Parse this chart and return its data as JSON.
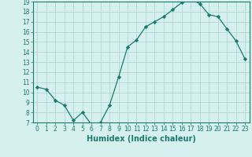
{
  "xlabel": "Humidex (Indice chaleur)",
  "x": [
    0,
    1,
    2,
    3,
    4,
    5,
    6,
    7,
    8,
    9,
    10,
    11,
    12,
    13,
    14,
    15,
    16,
    17,
    18,
    19,
    20,
    21,
    22,
    23
  ],
  "y": [
    10.5,
    10.3,
    9.2,
    8.7,
    7.2,
    8.0,
    6.8,
    7.0,
    8.7,
    11.5,
    14.5,
    15.2,
    16.5,
    17.0,
    17.5,
    18.2,
    18.9,
    19.2,
    18.8,
    17.7,
    17.5,
    16.3,
    15.1,
    13.3
  ],
  "line_color": "#1a7a6e",
  "marker": "D",
  "marker_size": 2.2,
  "bg_color": "#d6f0ef",
  "grid_color": "#b0d8d5",
  "ylim": [
    7,
    19
  ],
  "xlim": [
    -0.5,
    23.5
  ],
  "yticks": [
    7,
    8,
    9,
    10,
    11,
    12,
    13,
    14,
    15,
    16,
    17,
    18,
    19
  ],
  "xticks": [
    0,
    1,
    2,
    3,
    4,
    5,
    6,
    7,
    8,
    9,
    10,
    11,
    12,
    13,
    14,
    15,
    16,
    17,
    18,
    19,
    20,
    21,
    22,
    23
  ],
  "tick_fontsize": 5.5,
  "label_fontsize": 7.0,
  "axis_color": "#1a7a6e",
  "spine_color": "#1a7a6e"
}
